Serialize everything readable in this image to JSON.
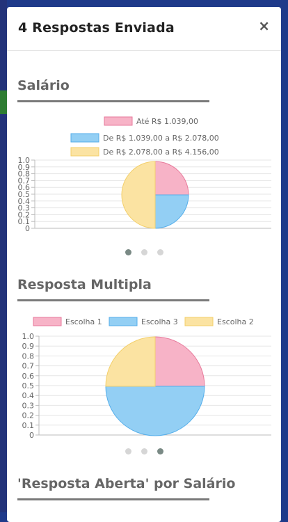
{
  "modal": {
    "title": "4 Respostas Enviada",
    "close_icon": "×"
  },
  "sections": [
    {
      "title": "Salário"
    },
    {
      "title": "Resposta Multipla"
    },
    {
      "title": "'Resposta Aberta' por Salário"
    }
  ],
  "colors": {
    "pink": "#f7b3c7",
    "blue": "#93cff4",
    "yellow": "#fbe3a2",
    "pink_border": "#e77a9b",
    "blue_border": "#55aeea",
    "yellow_border": "#f3cf6a"
  },
  "chart_data": [
    {
      "type": "pie",
      "legend": [
        "Até R$ 1.039,00",
        "De R$ 1.039,00 a R$ 2.078,00",
        "De R$ 2.078,00 a R$ 4.156,00"
      ],
      "values": [
        1,
        1,
        2
      ],
      "yticks": [
        "1.0",
        "0.9",
        "0.8",
        "0.7",
        "0.6",
        "0.5",
        "0.4",
        "0.3",
        "0.2",
        "0.1",
        "0"
      ],
      "ylim": [
        0,
        1
      ]
    },
    {
      "type": "pie",
      "legend": [
        "Escolha 1",
        "Escolha 3",
        "Escolha 2"
      ],
      "values": [
        1,
        2,
        1
      ],
      "yticks": [
        "1.0",
        "0.9",
        "0.8",
        "0.7",
        "0.6",
        "0.5",
        "0.4",
        "0.3",
        "0.2",
        "0.1",
        "0"
      ],
      "ylim": [
        0,
        1
      ]
    }
  ],
  "carousels": [
    {
      "active": 0,
      "count": 3
    },
    {
      "active": 2,
      "count": 3
    }
  ]
}
